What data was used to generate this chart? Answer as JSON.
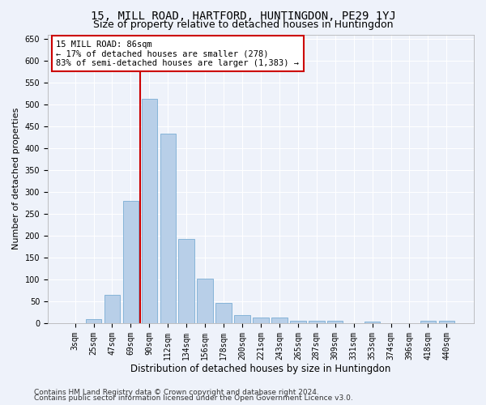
{
  "title1": "15, MILL ROAD, HARTFORD, HUNTINGDON, PE29 1YJ",
  "title2": "Size of property relative to detached houses in Huntingdon",
  "xlabel": "Distribution of detached houses by size in Huntingdon",
  "ylabel": "Number of detached properties",
  "categories": [
    "3sqm",
    "25sqm",
    "47sqm",
    "69sqm",
    "90sqm",
    "112sqm",
    "134sqm",
    "156sqm",
    "178sqm",
    "200sqm",
    "221sqm",
    "243sqm",
    "265sqm",
    "287sqm",
    "309sqm",
    "331sqm",
    "353sqm",
    "374sqm",
    "396sqm",
    "418sqm",
    "440sqm"
  ],
  "values": [
    0,
    10,
    65,
    280,
    513,
    433,
    193,
    102,
    46,
    18,
    13,
    13,
    6,
    5,
    5,
    0,
    4,
    0,
    0,
    6,
    6
  ],
  "bar_color": "#b8cfe8",
  "bar_edge_color": "#7aadd4",
  "annotation_text": "15 MILL ROAD: 86sqm\n← 17% of detached houses are smaller (278)\n83% of semi-detached houses are larger (1,383) →",
  "annotation_box_color": "#ffffff",
  "annotation_box_edge": "#cc0000",
  "vline_color": "#cc0000",
  "vline_bin_index": 4,
  "ylim_max": 660,
  "yticks": [
    0,
    50,
    100,
    150,
    200,
    250,
    300,
    350,
    400,
    450,
    500,
    550,
    600,
    650
  ],
  "footer1": "Contains HM Land Registry data © Crown copyright and database right 2024.",
  "footer2": "Contains public sector information licensed under the Open Government Licence v3.0.",
  "bg_color": "#eef2fa",
  "grid_color": "#ffffff",
  "title1_fontsize": 10,
  "title2_fontsize": 9,
  "xlabel_fontsize": 8.5,
  "ylabel_fontsize": 8,
  "tick_fontsize": 7,
  "annotation_fontsize": 7.5,
  "footer_fontsize": 6.5
}
